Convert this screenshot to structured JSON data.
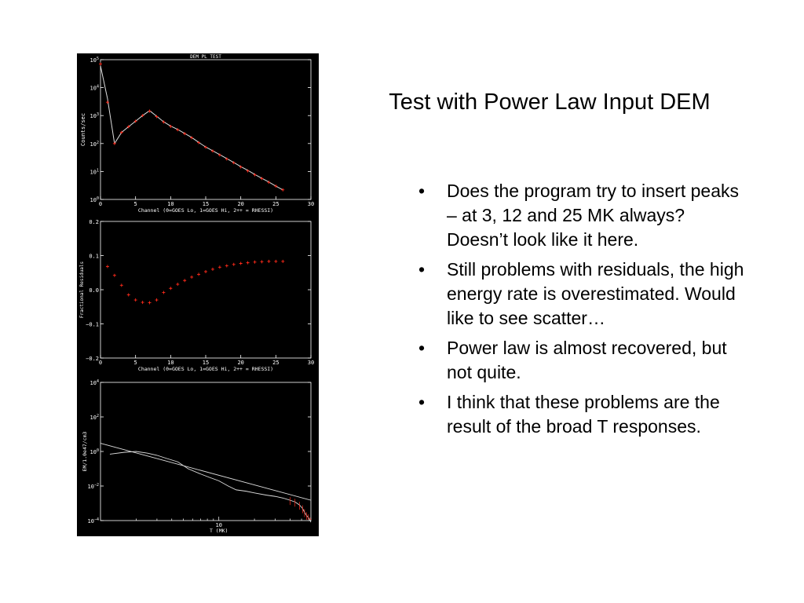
{
  "slide": {
    "title": "Test with Power Law Input DEM",
    "bullets": [
      "Does the program try to insert peaks – at 3, 12 and 25 MK always? Doesn’t look like it here.",
      "Still problems with residuals, the high energy rate is overestimated. Would like to see scatter…",
      "Power law is almost recovered, but not quite.",
      "I think that these problems are the result of the broad T responses."
    ],
    "bullet_glyph": "•"
  },
  "colors": {
    "background": "#000000",
    "axis": "#ffffff",
    "model": "#dddddd",
    "observed": "#ff2a1a"
  },
  "chart_data": [
    {
      "type": "line",
      "title": "DEM PL TEST",
      "xlabel": "Channel (0=GOES Lo, 1=GOES Hi, 2++ = RHESSI)",
      "ylabel": "Counts/sec",
      "xlim": [
        0,
        30
      ],
      "xticks": [
        "0",
        "5",
        "10",
        "15",
        "20",
        "25",
        "30"
      ],
      "yscale": "log",
      "ylim_exp": [
        0,
        5
      ],
      "ytick_labels": [
        {
          "base": "10",
          "exp": "0"
        },
        {
          "base": "10",
          "exp": "1"
        },
        {
          "base": "10",
          "exp": "2"
        },
        {
          "base": "10",
          "exp": "3"
        },
        {
          "base": "10",
          "exp": "4"
        },
        {
          "base": "10",
          "exp": "5"
        }
      ],
      "x": [
        0,
        1,
        2,
        3,
        4,
        5,
        6,
        7,
        8,
        9,
        10,
        11,
        12,
        13,
        14,
        15,
        16,
        17,
        18,
        19,
        20,
        21,
        22,
        23,
        24,
        25,
        26
      ],
      "series": [
        {
          "role": "model",
          "style": "line",
          "values": [
            60000,
            4000,
            100,
            250,
            400,
            630,
            1000,
            1500,
            950,
            600,
            420,
            320,
            230,
            165,
            110,
            75,
            55,
            40,
            29,
            21,
            15,
            11,
            7.8,
            5.7,
            4.2,
            3.0,
            2.2
          ]
        },
        {
          "role": "observed",
          "style": "plus",
          "values": [
            70000,
            3000,
            100,
            250,
            400,
            630,
            1000,
            1450,
            920,
            590,
            410,
            310,
            225,
            160,
            108,
            74,
            54,
            39,
            28,
            20.5,
            14.5,
            10.5,
            7.6,
            5.6,
            4.1,
            3.0,
            2.2
          ]
        }
      ]
    },
    {
      "type": "scatter",
      "title": "",
      "xlabel": "Channel (0=GOES Lo, 1=GOES Hi, 2++ = RHESSI)",
      "ylabel": "Fractional Residuals",
      "xlim": [
        0,
        30
      ],
      "xticks": [
        "0",
        "5",
        "10",
        "15",
        "20",
        "25",
        "30"
      ],
      "ylim": [
        -0.2,
        0.2
      ],
      "yticks": [
        "−0.2",
        "−0.1",
        "0.0",
        "0.1",
        "0.2"
      ],
      "x": [
        1,
        2,
        3,
        4,
        5,
        6,
        7,
        8,
        9,
        10,
        11,
        12,
        13,
        14,
        15,
        16,
        17,
        18,
        19,
        20,
        21,
        22,
        23,
        24,
        25,
        26
      ],
      "values": [
        0.068,
        0.042,
        0.013,
        -0.015,
        -0.03,
        -0.037,
        -0.038,
        -0.03,
        -0.008,
        0.004,
        0.016,
        0.027,
        0.037,
        0.045,
        0.053,
        0.06,
        0.066,
        0.07,
        0.074,
        0.077,
        0.079,
        0.081,
        0.082,
        0.083,
        0.083,
        0.083
      ]
    },
    {
      "type": "line",
      "title": "",
      "xlabel": "T (MK)",
      "ylabel": "EM/1.0e47/cm3",
      "xscale": "log",
      "xlim": [
        1,
        60
      ],
      "xticks": [
        "10"
      ],
      "yscale": "log",
      "ylim_exp": [
        -4,
        4
      ],
      "ytick_labels": [
        {
          "base": "10",
          "exp": "4"
        },
        {
          "base": "10",
          "exp": "2"
        },
        {
          "base": "10",
          "exp": "0"
        },
        {
          "base": "10",
          "exp": "−2"
        },
        {
          "base": "10",
          "exp": "−4"
        }
      ],
      "series": [
        {
          "role": "input power law",
          "x": [
            1,
            60
          ],
          "y": [
            3.0,
            0.0015
          ]
        },
        {
          "role": "recovered DEM",
          "x": [
            1.2,
            1.6,
            2.0,
            2.5,
            3.0,
            3.6,
            4.5,
            5.5,
            7.0,
            8.5,
            10,
            12,
            14,
            17,
            20,
            25,
            30,
            35,
            40,
            44,
            48,
            51,
            53,
            55,
            57,
            59,
            60
          ],
          "y": [
            0.7,
            0.9,
            1.0,
            0.8,
            0.6,
            0.4,
            0.25,
            0.1,
            0.05,
            0.03,
            0.02,
            0.01,
            0.006,
            0.005,
            0.004,
            0.003,
            0.0025,
            0.002,
            0.0015,
            0.0012,
            0.0008,
            0.0005,
            0.0003,
            0.0002,
            0.00015,
            0.0001,
            8e-05
          ]
        }
      ]
    }
  ]
}
